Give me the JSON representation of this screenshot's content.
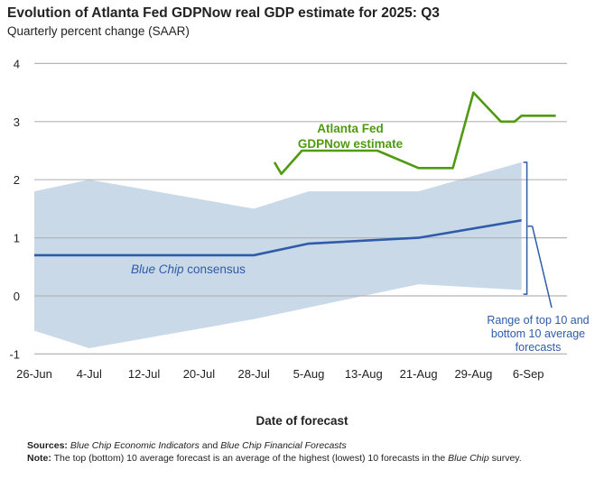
{
  "title": "Evolution of Atlanta Fed GDPNow real GDP estimate for 2025: Q3",
  "subtitle": "Quarterly percent change (SAAR)",
  "chart_data": {
    "type": "line",
    "xlabel": "Date of forecast",
    "ylabel": "",
    "ylim": [
      -1,
      4
    ],
    "yticks": [
      "4",
      "3",
      "2",
      "1",
      "0",
      "-1"
    ],
    "xticks": [
      "26-Jun",
      "4-Jul",
      "12-Jul",
      "20-Jul",
      "28-Jul",
      "5-Aug",
      "13-Aug",
      "21-Aug",
      "29-Aug",
      "6-Sep"
    ],
    "grid": "horizontal",
    "series": [
      {
        "name": "Atlanta Fed GDPNow estimate",
        "color": "#4f9a0e",
        "x": [
          "2025-07-31",
          "2025-08-01",
          "2025-08-04",
          "2025-08-15",
          "2025-08-21",
          "2025-08-26",
          "2025-08-29",
          "2025-09-02",
          "2025-09-04",
          "2025-09-05",
          "2025-09-10"
        ],
        "y": [
          2.3,
          2.1,
          2.5,
          2.5,
          2.2,
          2.2,
          3.5,
          3.0,
          3.0,
          3.1,
          3.1
        ]
      },
      {
        "name": "Blue Chip consensus",
        "color": "#2f5ba8",
        "x": [
          "2025-06-26",
          "2025-07-28",
          "2025-08-05",
          "2025-08-21",
          "2025-09-05"
        ],
        "y": [
          0.7,
          0.7,
          0.9,
          1.0,
          1.3
        ]
      },
      {
        "name": "Range of top 10 and bottom 10 average forecasts",
        "type": "area",
        "color": "#c9d9e8",
        "x": [
          "2025-06-26",
          "2025-07-04",
          "2025-07-28",
          "2025-08-05",
          "2025-08-21",
          "2025-09-05"
        ],
        "upper": [
          1.8,
          2.0,
          1.5,
          1.8,
          1.8,
          2.3
        ],
        "lower": [
          -0.6,
          -0.9,
          -0.4,
          -0.2,
          0.2,
          0.1
        ]
      }
    ],
    "annotations": {
      "gdpnow_line1": "Atlanta Fed",
      "gdpnow_line2": "GDPNow estimate",
      "bluechip_italic": "Blue Chip",
      "bluechip_rest": " consensus",
      "range_line1": "Range of top 10 and",
      "range_line2": "bottom 10 average",
      "range_line3": "forecasts"
    }
  },
  "notes": {
    "sources_label": "Sources:",
    "sources_a": "Blue Chip Economic Indicators",
    "sources_and": " and ",
    "sources_b": "Blue Chip Financial Forecasts",
    "note_label": "Note:",
    "note_a": " The top (bottom) 10 average forecast is an average of the highest (lowest) 10 forecasts in the ",
    "note_italic": "Blue Chip",
    "note_b": " survey."
  }
}
